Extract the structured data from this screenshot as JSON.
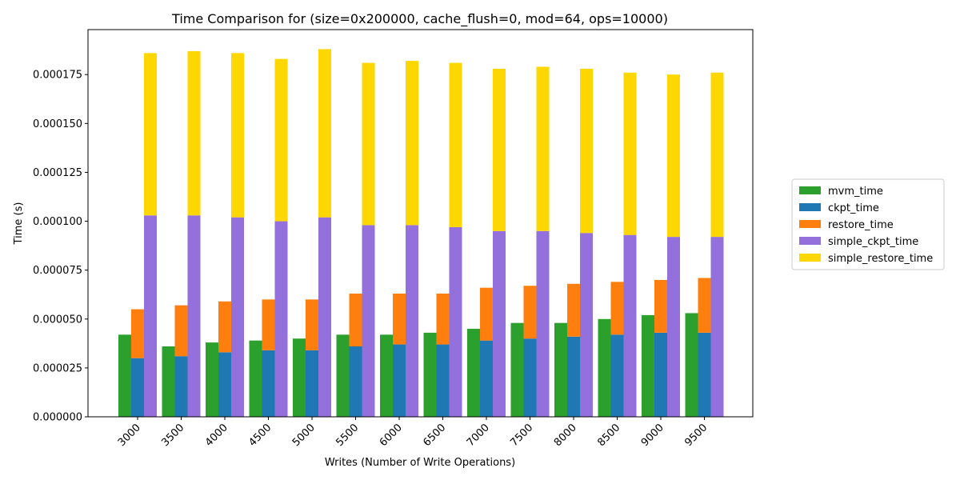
{
  "chart_data": {
    "type": "bar",
    "title": "Time Comparison for (size=0x200000, cache_flush=0, mod=64, ops=10000)",
    "xlabel": "Writes (Number of Write Operations)",
    "ylabel": "Time (s)",
    "ylim": [
      0,
      0.000198
    ],
    "yticks": [
      "0.000000",
      "0.000025",
      "0.000050",
      "0.000075",
      "0.000100",
      "0.000125",
      "0.000150",
      "0.000175"
    ],
    "ytick_values": [
      0,
      2.5e-05,
      5e-05,
      7.5e-05,
      0.0001,
      0.000125,
      0.00015,
      0.000175
    ],
    "categories": [
      "3000",
      "3500",
      "4000",
      "4500",
      "5000",
      "5500",
      "6000",
      "6500",
      "7000",
      "7500",
      "8000",
      "8500",
      "9000",
      "9500"
    ],
    "legend_position": "right",
    "grid": false,
    "series": [
      {
        "name": "mvm_time",
        "color": "#2ca02c",
        "group": "left",
        "stacked_on": null,
        "values": [
          4.2e-05,
          3.6e-05,
          3.8e-05,
          3.9e-05,
          4e-05,
          4.2e-05,
          4.2e-05,
          4.3e-05,
          4.5e-05,
          4.8e-05,
          4.8e-05,
          5e-05,
          5.2e-05,
          5.3e-05
        ]
      },
      {
        "name": "ckpt_time",
        "color": "#1f77b4",
        "group": "middle",
        "stacked_on": null,
        "values": [
          3e-05,
          3.1e-05,
          3.3e-05,
          3.4e-05,
          3.4e-05,
          3.6e-05,
          3.7e-05,
          3.7e-05,
          3.9e-05,
          4e-05,
          4.1e-05,
          4.2e-05,
          4.3e-05,
          4.3e-05
        ]
      },
      {
        "name": "restore_time",
        "color": "#ff7f0e",
        "group": "middle",
        "stacked_on": "ckpt_time",
        "values": [
          2.5e-05,
          2.6e-05,
          2.6e-05,
          2.6e-05,
          2.6e-05,
          2.7e-05,
          2.6e-05,
          2.6e-05,
          2.7e-05,
          2.7e-05,
          2.7e-05,
          2.7e-05,
          2.7e-05,
          2.8e-05
        ]
      },
      {
        "name": "simple_ckpt_time",
        "color": "#9370db",
        "group": "right",
        "stacked_on": null,
        "values": [
          0.000103,
          0.000103,
          0.000102,
          0.0001,
          0.000102,
          9.8e-05,
          9.8e-05,
          9.7e-05,
          9.5e-05,
          9.5e-05,
          9.4e-05,
          9.3e-05,
          9.2e-05,
          9.2e-05
        ]
      },
      {
        "name": "simple_restore_time",
        "color": "#ffd700",
        "group": "right",
        "stacked_on": "simple_ckpt_time",
        "values": [
          8.3e-05,
          8.4e-05,
          8.4e-05,
          8.3e-05,
          8.6e-05,
          8.3e-05,
          8.4e-05,
          8.4e-05,
          8.3e-05,
          8.4e-05,
          8.4e-05,
          8.3e-05,
          8.3e-05,
          8.4e-05
        ]
      }
    ]
  }
}
